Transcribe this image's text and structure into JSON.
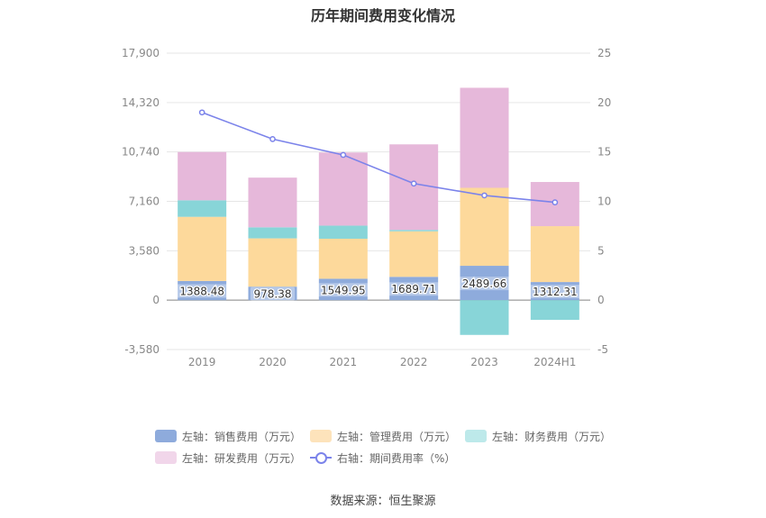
{
  "chart_data": {
    "type": "bar",
    "title": "历年期间费用变化情况",
    "categories": [
      "2019",
      "2020",
      "2021",
      "2022",
      "2023",
      "2024H1"
    ],
    "y_left_ticks": [
      "17,900",
      "14,320",
      "10,740",
      "7,160",
      "3,580",
      "0",
      "-3,580"
    ],
    "y_left_range": [
      -3580,
      17900
    ],
    "y_right_ticks": [
      "25",
      "20",
      "15",
      "10",
      "5",
      "0",
      "-5"
    ],
    "y_right_range": [
      -5,
      25
    ],
    "grid": true,
    "legend_position": "bottom",
    "series": [
      {
        "name": "左轴：销售费用（万元）",
        "axis": "left",
        "color": "#8eabdc",
        "legend_color": "#8eabdc",
        "values": [
          1388.48,
          978.38,
          1549.95,
          1689.71,
          2489.66,
          1312.31
        ],
        "labels": [
          "1388.48",
          "978.38",
          "1549.95",
          "1689.71",
          "2489.66",
          "1312.31"
        ]
      },
      {
        "name": "左轴：管理费用（万元）",
        "axis": "left",
        "color": "#fdd99b",
        "legend_color": "#fde3bb",
        "values": [
          4650,
          3500,
          2900,
          3300,
          5650,
          4050
        ]
      },
      {
        "name": "左轴：财务费用（万元）",
        "axis": "left",
        "color": "#88d5d8",
        "legend_color": "#bde9ea",
        "values": [
          1200,
          800,
          950,
          100,
          -2520,
          -1430
        ]
      },
      {
        "name": "左轴：研发费用（万元）",
        "axis": "left",
        "color": "#e6b8da",
        "legend_color": "#f1d6ea",
        "values": [
          3500,
          3600,
          5300,
          6200,
          7250,
          3200
        ]
      },
      {
        "name": "右轴：期间费用率（%）",
        "axis": "right",
        "type": "line",
        "color": "#7b83ea",
        "values": [
          19.0,
          16.3,
          14.7,
          11.8,
          10.6,
          9.9
        ]
      }
    ]
  },
  "source": "数据来源：恒生聚源"
}
